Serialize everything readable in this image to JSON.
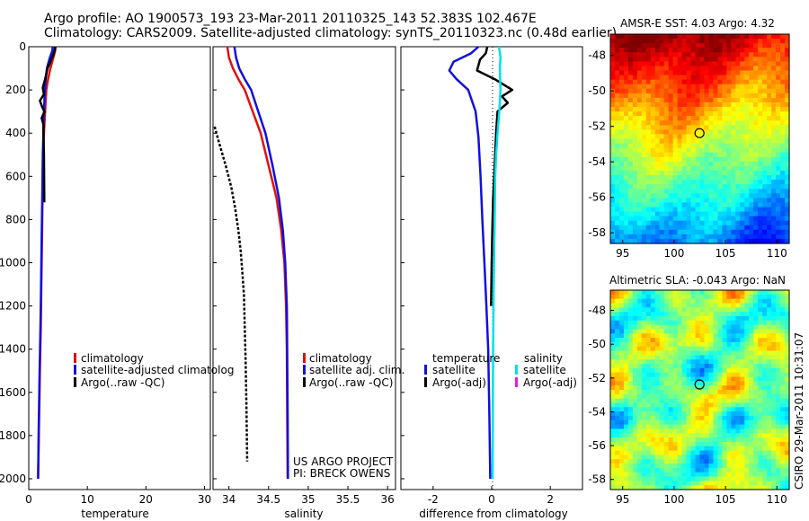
{
  "header": {
    "line1": "Argo profile: AO 1900573_193 23-Mar-2011 20110325_143 52.383S 102.467E",
    "line2": "Climatology: CARS2009. Satellite-adjusted climatology: synTS_20110323.nc (0.48d earlier)"
  },
  "side_stamp": "CSIRO 29-Mar-2011 10:31:07",
  "colors": {
    "climatology": "#e01010",
    "satellite": "#1010e0",
    "argo": "#000000",
    "cyan": "#00e0e8",
    "magenta": "#e020e0"
  },
  "chart_data": [
    {
      "type": "line",
      "xlabel": "temperature",
      "xlim": [
        0,
        31
      ],
      "ylim": [
        2050,
        0
      ],
      "x_ticks": [
        0,
        10,
        20,
        30
      ],
      "y_ticks": [
        0,
        200,
        400,
        600,
        800,
        1000,
        1200,
        1400,
        1600,
        1800,
        2000
      ],
      "legend": {
        "entries": [
          "climatology",
          "satellite-adjusted climatolog",
          "Argo(..raw -QC)"
        ],
        "placement": "lower-right"
      },
      "series": [
        {
          "name": "climatology",
          "color": "#e01010",
          "x": [
            4.6,
            4.5,
            4.2,
            3.7,
            3.3,
            3.0,
            2.8,
            2.6,
            2.45,
            2.35,
            2.25,
            2.15,
            2.05,
            1.9,
            1.75,
            1.6
          ],
          "y": [
            0,
            20,
            50,
            100,
            150,
            200,
            300,
            400,
            500,
            700,
            900,
            1100,
            1300,
            1500,
            1750,
            2000
          ]
        },
        {
          "name": "satellite-adjusted climatology",
          "color": "#1010e0",
          "x": [
            4.1,
            4.0,
            3.6,
            3.1,
            2.9,
            2.75,
            2.6,
            2.5,
            2.4,
            2.3,
            2.2,
            2.1,
            2.0,
            1.85,
            1.7,
            1.6
          ],
          "y": [
            0,
            20,
            50,
            100,
            150,
            200,
            300,
            400,
            500,
            700,
            900,
            1100,
            1300,
            1500,
            1750,
            2000
          ]
        },
        {
          "name": "Argo(..raw -QC)",
          "color": "#000000",
          "x": [
            4.5,
            4.4,
            4.0,
            3.2,
            2.8,
            2.4,
            2.6,
            1.9,
            2.3,
            2.7,
            2.2,
            2.5,
            2.5,
            2.6,
            2.65
          ],
          "y": [
            0,
            20,
            50,
            100,
            150,
            190,
            220,
            250,
            280,
            300,
            330,
            360,
            400,
            500,
            720
          ]
        }
      ]
    },
    {
      "type": "line",
      "xlabel": "salinity",
      "xlim": [
        33.8,
        36.1
      ],
      "ylim": [
        2050,
        0
      ],
      "x_ticks": [
        34,
        34.5,
        35,
        35.5,
        36
      ],
      "legend": {
        "entries": [
          "climatology",
          "satellite adj. clim.",
          "Argo(..raw -QC)"
        ],
        "placement": "lower-right"
      },
      "annotations": [
        "US ARGO PROJECT",
        "PI: BRECK OWENS"
      ],
      "series": [
        {
          "name": "climatology",
          "color": "#e01010",
          "x": [
            33.98,
            34.0,
            34.05,
            34.12,
            34.2,
            34.3,
            34.4,
            34.5,
            34.6,
            34.66,
            34.7,
            34.72,
            34.73,
            34.735,
            34.74
          ],
          "y": [
            0,
            50,
            100,
            150,
            200,
            300,
            400,
            550,
            700,
            850,
            1000,
            1200,
            1400,
            1700,
            2000
          ]
        },
        {
          "name": "satellite adj. clim.",
          "color": "#1010e0",
          "x": [
            34.07,
            34.09,
            34.13,
            34.2,
            34.28,
            34.37,
            34.46,
            34.55,
            34.63,
            34.68,
            34.71,
            34.73,
            34.735,
            34.74,
            34.745
          ],
          "y": [
            0,
            50,
            100,
            150,
            200,
            300,
            400,
            550,
            700,
            850,
            1000,
            1200,
            1400,
            1700,
            2000
          ]
        },
        {
          "name": "Argo(..raw -QC)",
          "color": "#000000",
          "x": [
            33.82,
            33.88,
            33.96,
            34.03,
            34.08,
            34.12,
            34.15,
            34.17,
            34.19,
            34.2,
            34.21,
            34.22,
            34.23
          ],
          "y": [
            370,
            450,
            550,
            650,
            750,
            850,
            950,
            1050,
            1150,
            1300,
            1450,
            1650,
            1920
          ]
        }
      ]
    },
    {
      "type": "line",
      "xlabel": "difference from climatology",
      "xlim": [
        -3.1,
        3.1
      ],
      "ylim": [
        2050,
        0
      ],
      "x_ticks": [
        -2,
        0,
        2
      ],
      "legend": {
        "columns": [
          {
            "title": "temperature",
            "entries": [
              "satellite",
              "Argo(-adj)"
            ]
          },
          {
            "title": "salinity",
            "entries": [
              "satellite",
              "Argo(-adj)"
            ]
          }
        ],
        "placement": "lower"
      },
      "series": [
        {
          "name": "temperature satellite",
          "color": "#1010e0",
          "x": [
            -0.45,
            -0.7,
            -1.3,
            -1.45,
            -1.2,
            -0.8,
            -0.55,
            -0.45,
            -0.38,
            -0.32,
            -0.25,
            -0.18,
            -0.12,
            -0.08,
            -0.05
          ],
          "y": [
            0,
            30,
            70,
            110,
            150,
            200,
            300,
            420,
            600,
            800,
            1000,
            1200,
            1400,
            1700,
            2000
          ]
        },
        {
          "name": "temperature Argo(-adj)",
          "color": "#000000",
          "x": [
            -0.15,
            -0.2,
            -0.4,
            -0.5,
            0.1,
            0.7,
            0.35,
            0.55,
            0.2,
            0.15,
            0.1,
            0.05,
            0.02,
            0.0,
            -0.02
          ],
          "y": [
            0,
            30,
            60,
            110,
            150,
            200,
            230,
            260,
            300,
            400,
            550,
            700,
            850,
            1000,
            1200
          ]
        },
        {
          "name": "salinity satellite",
          "color": "#00e0e8",
          "x": [
            0.25,
            0.3,
            0.28,
            0.3,
            0.26,
            0.2,
            0.15,
            0.12,
            0.1,
            0.08,
            0.06,
            0.05,
            0.04,
            0.03
          ],
          "y": [
            0,
            50,
            100,
            200,
            300,
            400,
            500,
            600,
            800,
            1000,
            1200,
            1400,
            1700,
            2000
          ]
        }
      ]
    }
  ],
  "maps": [
    {
      "title": "AMSR-E SST: 4.03 Argo: 4.32",
      "x_ticks": [
        95,
        100,
        105,
        110
      ],
      "y_ticks": [
        -48,
        -50,
        -52,
        -54,
        -56,
        -58
      ],
      "marker": {
        "lon": 102.47,
        "lat": -52.38
      }
    },
    {
      "title": "Altimetric SLA: -0.043 Argo: NaN",
      "x_ticks": [
        95,
        100,
        105,
        110
      ],
      "y_ticks": [
        -48,
        -50,
        -52,
        -54,
        -56,
        -58
      ],
      "marker": {
        "lon": 102.47,
        "lat": -52.38
      }
    }
  ]
}
